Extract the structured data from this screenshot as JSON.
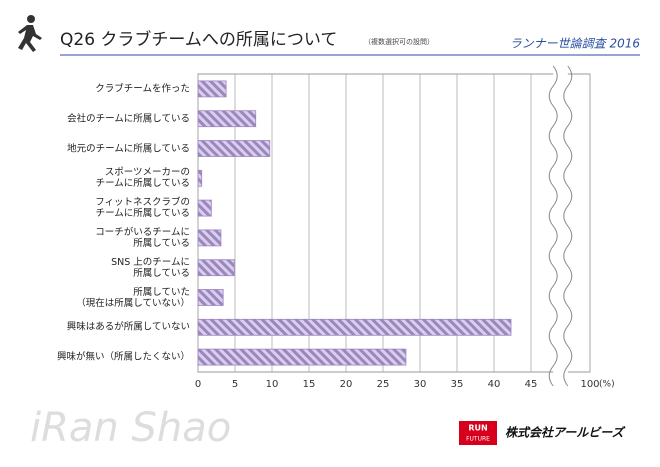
{
  "chart_data": {
    "type": "bar",
    "orientation": "horizontal",
    "title": "Q26 クラブチームへの所属について",
    "subtitle": "（複数選択可の設問）",
    "source": "ランナー世論調査 2016",
    "categories": [
      "クラブチームを作った",
      "会社のチームに所属している",
      "地元のチームに所属している",
      "スポーツメーカーの\nチームに所属している",
      "フィットネスクラブの\nチームに所属している",
      "コーチがいるチームに\n所属している",
      "SNS 上のチームに\n所属している",
      "所属していた\n（現在は所属していない）",
      "興味はあるが所属していない",
      "興味が無い（所属したくない）"
    ],
    "values": [
      3.8,
      7.8,
      9.7,
      0.5,
      1.8,
      3.1,
      4.9,
      3.4,
      42.3,
      28.1
    ],
    "color": "#9b86c0",
    "xlim": [
      0,
      100
    ],
    "axis_break": [
      48,
      97
    ],
    "xticks": [
      0,
      5,
      10,
      15,
      20,
      25,
      30,
      35,
      40,
      45,
      100
    ],
    "x_unit": "(%)",
    "grid": true
  },
  "footer": {
    "left_logo": "iRan Shao",
    "badge_top": "RUN",
    "badge_bottom": "FUTURE",
    "company": "株式会社アールビーズ"
  }
}
